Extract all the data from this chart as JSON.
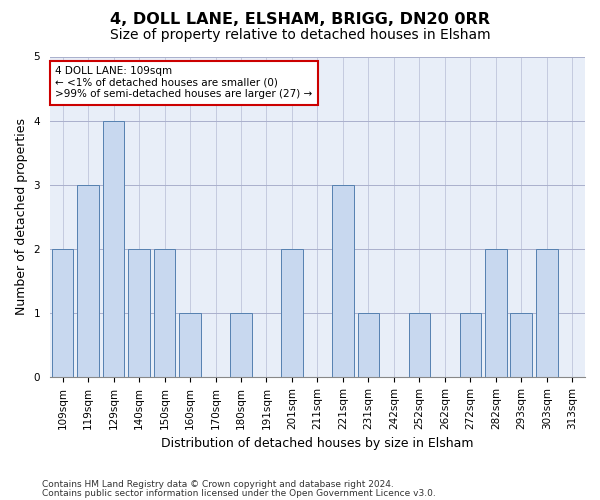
{
  "title1": "4, DOLL LANE, ELSHAM, BRIGG, DN20 0RR",
  "title2": "Size of property relative to detached houses in Elsham",
  "xlabel": "Distribution of detached houses by size in Elsham",
  "ylabel": "Number of detached properties",
  "categories": [
    "109sqm",
    "119sqm",
    "129sqm",
    "140sqm",
    "150sqm",
    "160sqm",
    "170sqm",
    "180sqm",
    "191sqm",
    "201sqm",
    "211sqm",
    "221sqm",
    "231sqm",
    "242sqm",
    "252sqm",
    "262sqm",
    "272sqm",
    "282sqm",
    "293sqm",
    "303sqm",
    "313sqm"
  ],
  "values": [
    2,
    3,
    4,
    2,
    2,
    1,
    0,
    1,
    0,
    2,
    0,
    3,
    1,
    0,
    1,
    0,
    1,
    2,
    1,
    2,
    0
  ],
  "bar_color": "#c8d8ef",
  "bar_edge_color": "#5580b0",
  "annotation_box_text": "4 DOLL LANE: 109sqm\n← <1% of detached houses are smaller (0)\n>99% of semi-detached houses are larger (27) →",
  "annotation_box_edge_color": "#cc0000",
  "ylim": [
    0,
    5
  ],
  "yticks": [
    0,
    1,
    2,
    3,
    4,
    5
  ],
  "footer_line1": "Contains HM Land Registry data © Crown copyright and database right 2024.",
  "footer_line2": "Contains public sector information licensed under the Open Government Licence v3.0.",
  "bg_color": "#ffffff",
  "plot_bg_color": "#e8eef8",
  "grid_color": "#aab0cc",
  "title1_fontsize": 11.5,
  "title2_fontsize": 10,
  "xlabel_fontsize": 9,
  "ylabel_fontsize": 9,
  "tick_fontsize": 7.5,
  "footer_fontsize": 6.5
}
